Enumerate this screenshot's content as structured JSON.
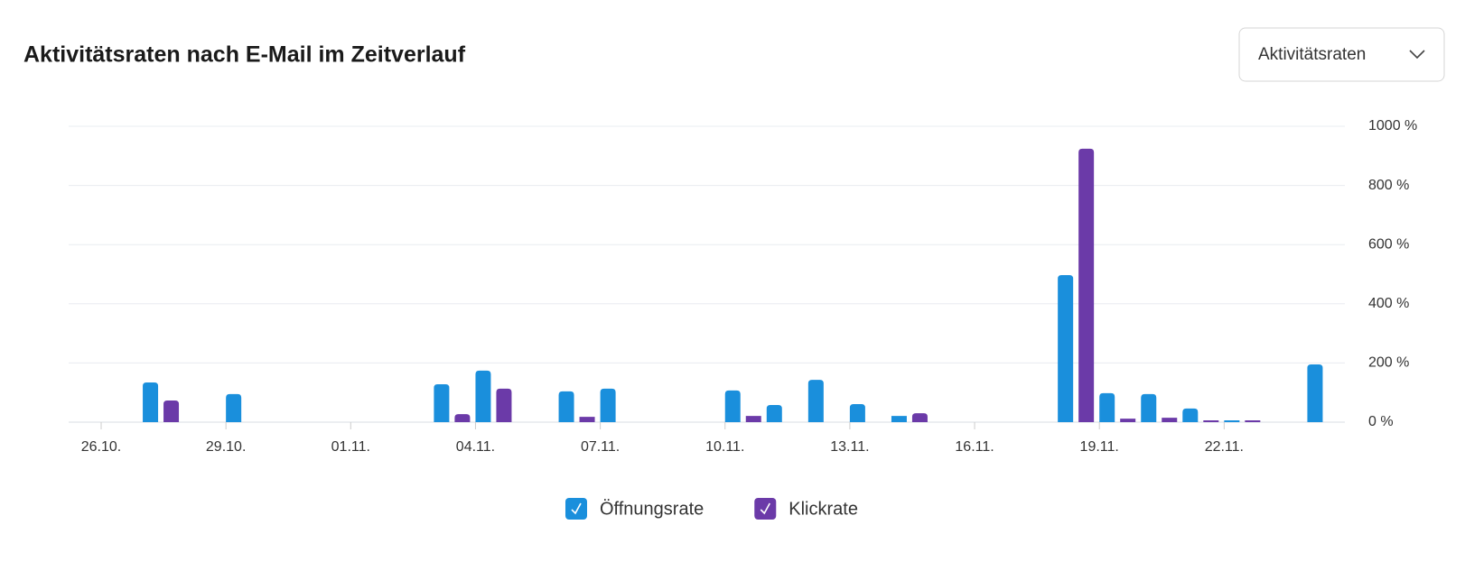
{
  "chart_data": {
    "type": "bar",
    "title": "Aktivitätsraten nach E-Mail im Zeitverlauf",
    "dropdown": "Aktivitätsraten",
    "categories": [
      "26.10.",
      null,
      null,
      "29.10.",
      null,
      null,
      "01.11.",
      null,
      null,
      "04.11.",
      null,
      null,
      "07.11.",
      null,
      null,
      "10.11.",
      null,
      null,
      "13.11.",
      null,
      null,
      "16.11.",
      null,
      null,
      "19.11.",
      null,
      null,
      "22.11.",
      null,
      null
    ],
    "series": [
      {
        "name": "Öffnungsrate",
        "color": "#1a8fdc",
        "values": [
          null,
          134,
          null,
          95,
          null,
          null,
          null,
          null,
          128,
          174,
          null,
          104,
          113,
          null,
          null,
          107,
          58,
          143,
          61,
          21,
          null,
          null,
          null,
          497,
          98,
          95,
          46,
          6,
          null,
          195
        ]
      },
      {
        "name": "Klickrate",
        "color": "#6b3aa8",
        "values": [
          null,
          73,
          null,
          null,
          null,
          null,
          null,
          null,
          27,
          113,
          null,
          18,
          null,
          null,
          null,
          21,
          null,
          null,
          null,
          30,
          null,
          null,
          null,
          924,
          12,
          15,
          6,
          6,
          null,
          null
        ]
      }
    ],
    "ylim": [
      0,
      1000
    ],
    "yticks": [
      {
        "value": 0,
        "label": "0 %"
      },
      {
        "value": 200,
        "label": "200 %"
      },
      {
        "value": 400,
        "label": "400 %"
      },
      {
        "value": 600,
        "label": "600 %"
      },
      {
        "value": 800,
        "label": "800 %"
      },
      {
        "value": 1000,
        "label": "1000 %"
      }
    ],
    "grid": true
  }
}
